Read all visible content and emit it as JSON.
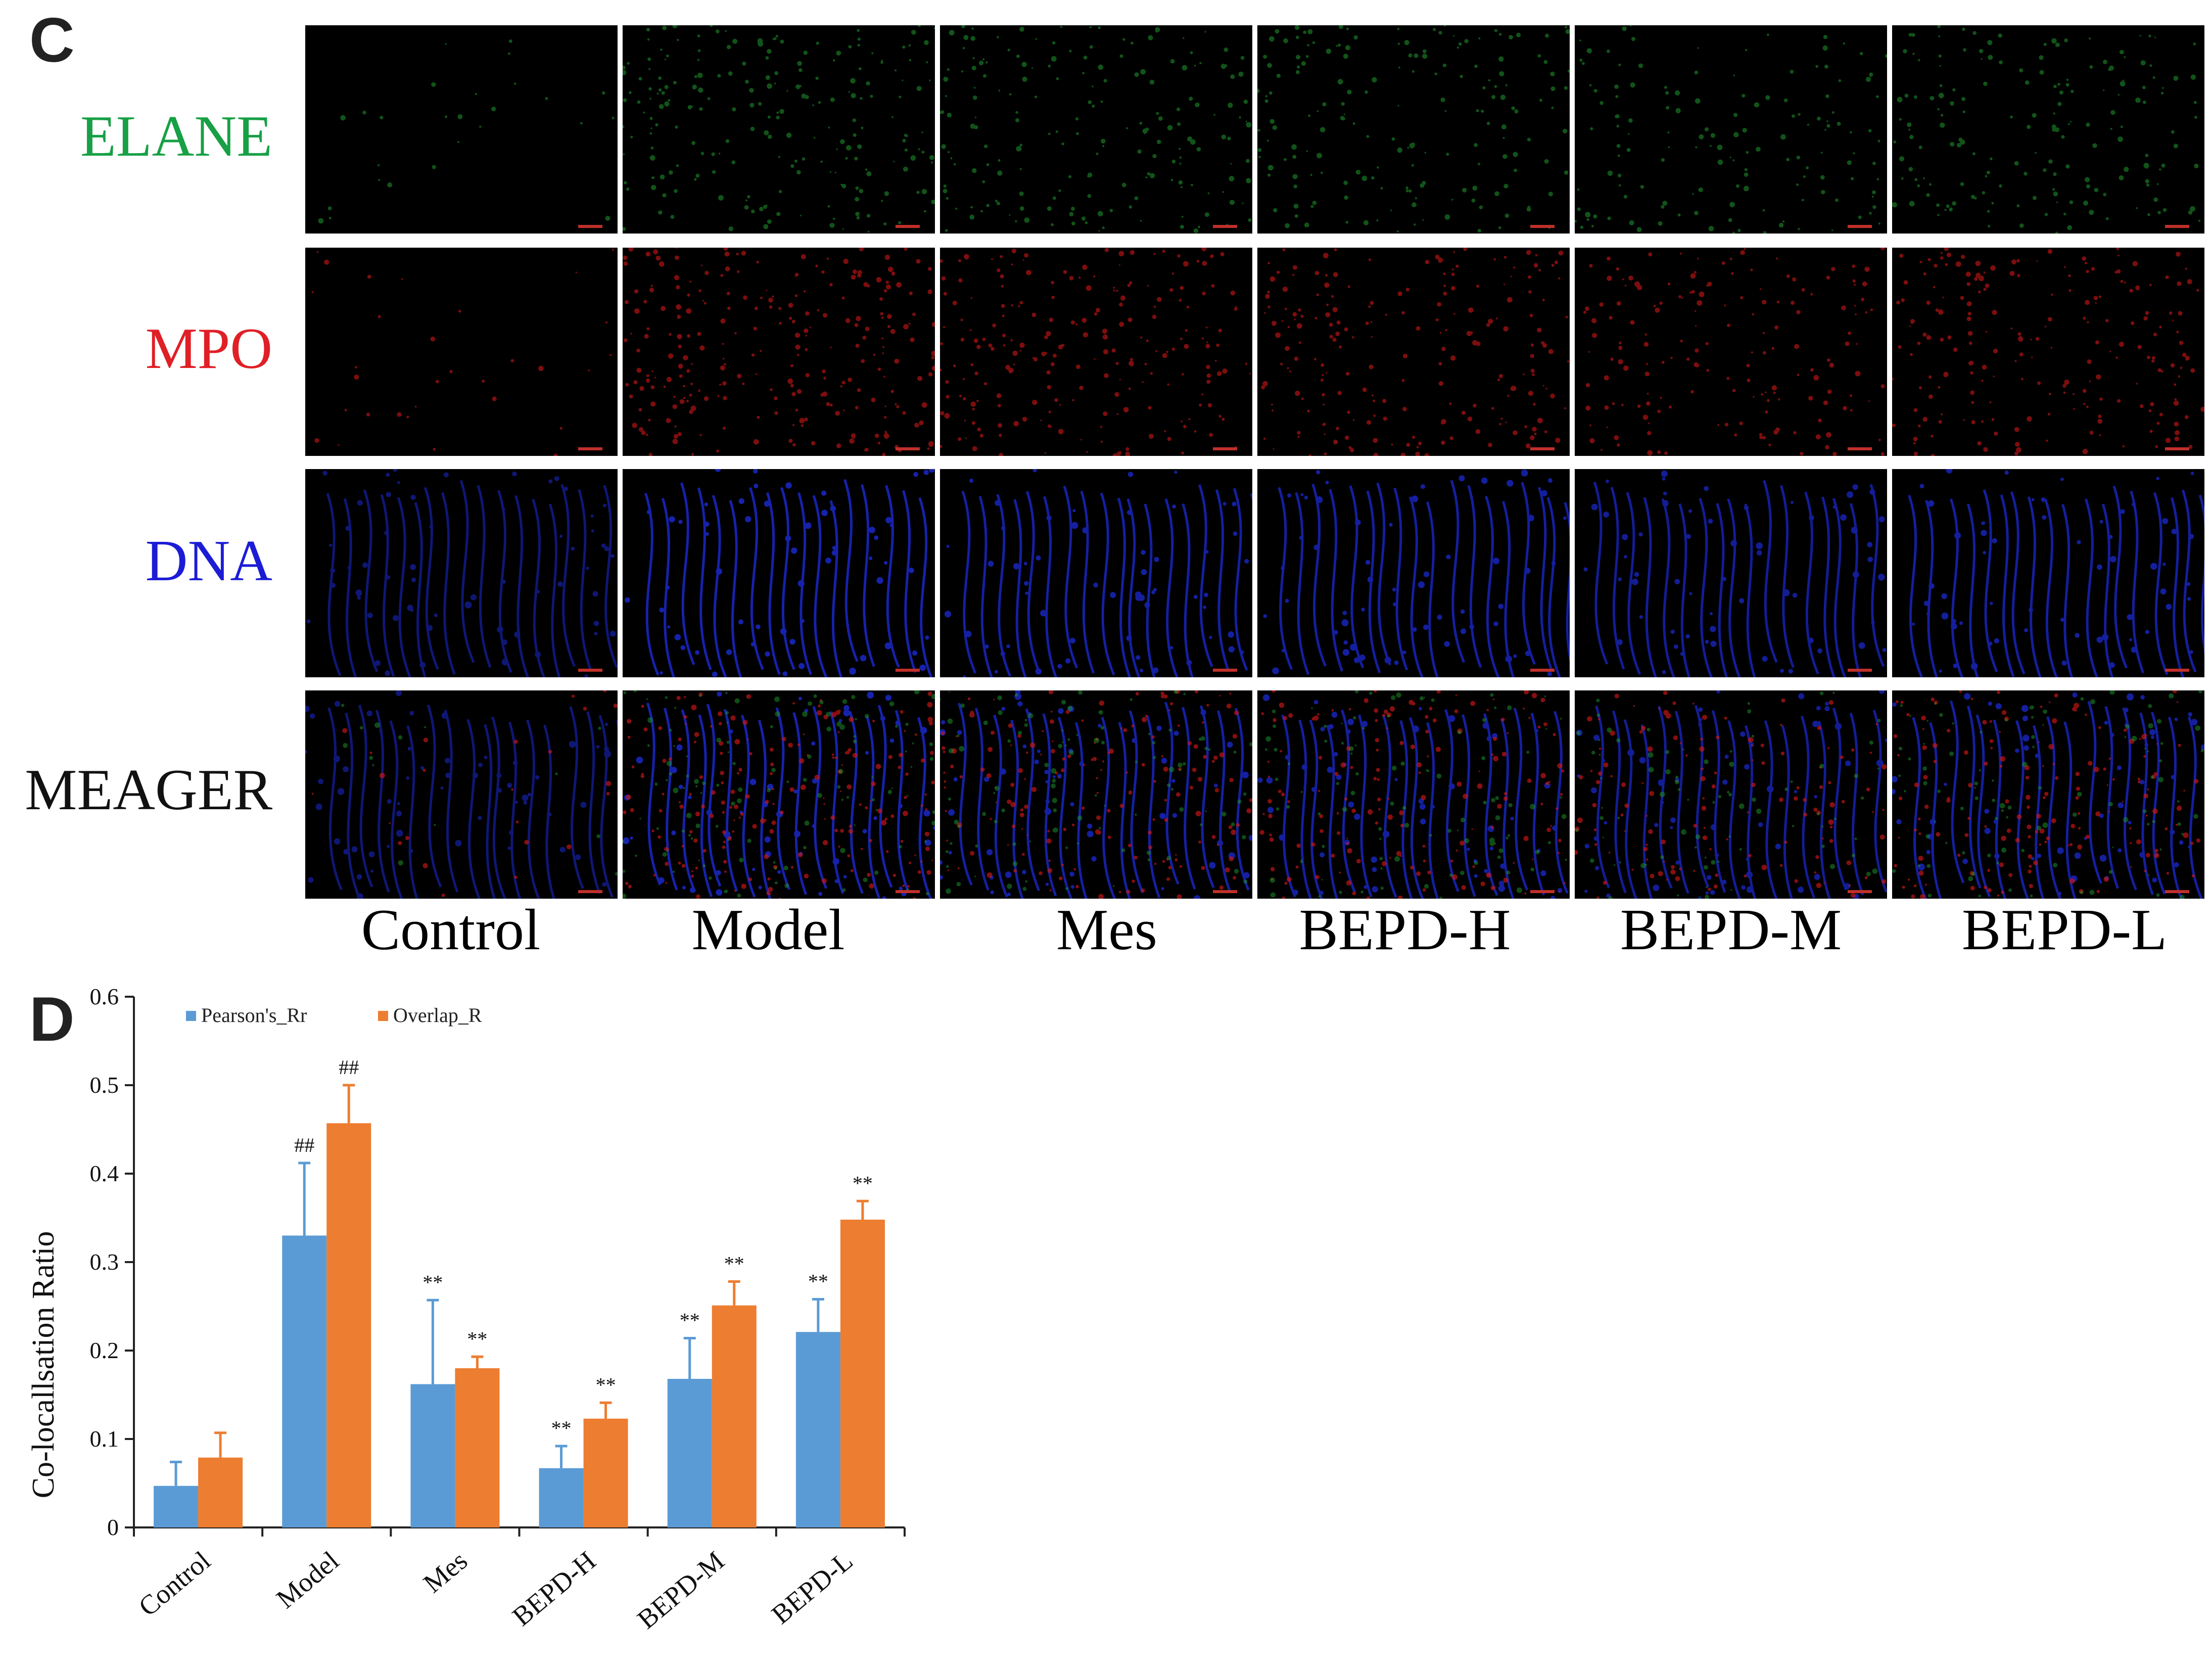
{
  "panel_c": {
    "letter": "C",
    "rows": [
      {
        "label": "ELANE",
        "color": "#17a045",
        "stain": "green"
      },
      {
        "label": "MPO",
        "color": "#e01f26",
        "stain": "red"
      },
      {
        "label": "DNA",
        "color": "#1c1cd6",
        "stain": "blue"
      },
      {
        "label": "MEAGER",
        "color": "#111111",
        "stain": "merge"
      }
    ],
    "columns": [
      "Control",
      "Model",
      "Mes",
      "BEPD-H",
      "BEPD-M",
      "BEPD-L"
    ]
  },
  "panel_d": {
    "letter": "D"
  },
  "chart_data": {
    "type": "bar",
    "ylabel": "Co-locallsation Ratio",
    "xlabel": "",
    "ylim": [
      0,
      0.6
    ],
    "yticks": [
      0,
      0.1,
      0.2,
      0.3,
      0.4,
      0.5,
      0.6
    ],
    "ytick_labels": [
      "0",
      "0.1",
      "0.2",
      "0.3",
      "0.4",
      "0.5",
      "0.6"
    ],
    "categories": [
      "Control",
      "Model",
      "Mes",
      "BEPD-H",
      "BEPD-M",
      "BEPD-L"
    ],
    "legend_position": "top-left",
    "grid": false,
    "series": [
      {
        "name": "Pearson's_Rr",
        "color": "#5b9bd5",
        "values": [
          0.047,
          0.33,
          0.162,
          0.067,
          0.168,
          0.221
        ],
        "errors": [
          0.027,
          0.082,
          0.095,
          0.025,
          0.046,
          0.037
        ],
        "annotations": [
          "",
          "##",
          "**",
          "**",
          "**",
          "**"
        ]
      },
      {
        "name": "Overlap_R",
        "color": "#ed7d31",
        "values": [
          0.079,
          0.457,
          0.18,
          0.123,
          0.251,
          0.348
        ],
        "errors": [
          0.028,
          0.043,
          0.013,
          0.018,
          0.027,
          0.021
        ],
        "annotations": [
          "",
          "##",
          "**",
          "**",
          "**",
          "**"
        ]
      }
    ]
  }
}
